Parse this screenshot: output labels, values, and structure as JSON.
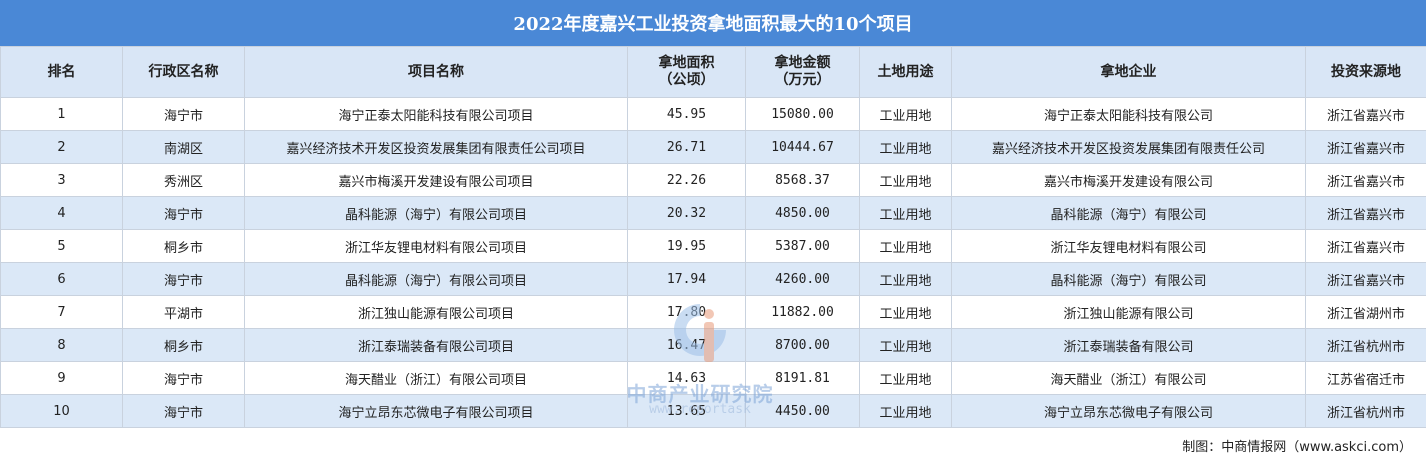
{
  "title": "2022年度嘉兴工业投资拿地面积最大的10个项目",
  "headers": {
    "rank": "排名",
    "district": "行政区名称",
    "project": "项目名称",
    "area_line1": "拿地面积",
    "area_line2": "（公顷）",
    "amount_line1": "拿地金额",
    "amount_line2": "（万元）",
    "use": "土地用途",
    "company": "拿地企业",
    "origin": "投资来源地"
  },
  "rows": [
    {
      "rank": "1",
      "district": "海宁市",
      "project": "海宁正泰太阳能科技有限公司项目",
      "area": "45.95",
      "amount": "15080.00",
      "use": "工业用地",
      "company": "海宁正泰太阳能科技有限公司",
      "origin": "浙江省嘉兴市"
    },
    {
      "rank": "2",
      "district": "南湖区",
      "project": "嘉兴经济技术开发区投资发展集团有限责任公司项目",
      "area": "26.71",
      "amount": "10444.67",
      "use": "工业用地",
      "company": "嘉兴经济技术开发区投资发展集团有限责任公司",
      "origin": "浙江省嘉兴市"
    },
    {
      "rank": "3",
      "district": "秀洲区",
      "project": "嘉兴市梅溪开发建设有限公司项目",
      "area": "22.26",
      "amount": "8568.37",
      "use": "工业用地",
      "company": "嘉兴市梅溪开发建设有限公司",
      "origin": "浙江省嘉兴市"
    },
    {
      "rank": "4",
      "district": "海宁市",
      "project": "晶科能源（海宁）有限公司项目",
      "area": "20.32",
      "amount": "4850.00",
      "use": "工业用地",
      "company": "晶科能源（海宁）有限公司",
      "origin": "浙江省嘉兴市"
    },
    {
      "rank": "5",
      "district": "桐乡市",
      "project": "浙江华友锂电材料有限公司项目",
      "area": "19.95",
      "amount": "5387.00",
      "use": "工业用地",
      "company": "浙江华友锂电材料有限公司",
      "origin": "浙江省嘉兴市"
    },
    {
      "rank": "6",
      "district": "海宁市",
      "project": "晶科能源（海宁）有限公司项目",
      "area": "17.94",
      "amount": "4260.00",
      "use": "工业用地",
      "company": "晶科能源（海宁）有限公司",
      "origin": "浙江省嘉兴市"
    },
    {
      "rank": "7",
      "district": "平湖市",
      "project": "浙江独山能源有限公司项目",
      "area": "17.80",
      "amount": "11882.00",
      "use": "工业用地",
      "company": "浙江独山能源有限公司",
      "origin": "浙江省湖州市"
    },
    {
      "rank": "8",
      "district": "桐乡市",
      "project": "浙江泰瑞装备有限公司项目",
      "area": "16.47",
      "amount": "8700.00",
      "use": "工业用地",
      "company": "浙江泰瑞装备有限公司",
      "origin": "浙江省杭州市"
    },
    {
      "rank": "9",
      "district": "海宁市",
      "project": "海天醋业（浙江）有限公司项目",
      "area": "14.63",
      "amount": "8191.81",
      "use": "工业用地",
      "company": "海天醋业（浙江）有限公司",
      "origin": "江苏省宿迁市"
    },
    {
      "rank": "10",
      "district": "海宁市",
      "project": "海宁立昂东芯微电子有限公司项目",
      "area": "13.65",
      "amount": "4450.00",
      "use": "工业用地",
      "company": "海宁立昂东芯微电子有限公司",
      "origin": "浙江省杭州市"
    }
  ],
  "source": "制图：中商情报网（www.askci.com）",
  "watermark": {
    "name": "中商产业研究院",
    "url": "www.reportask"
  },
  "colors": {
    "title_bg": "#4a88d6",
    "header_bg": "#d9e6f6",
    "stripe_bg": "#dbe8f7"
  }
}
